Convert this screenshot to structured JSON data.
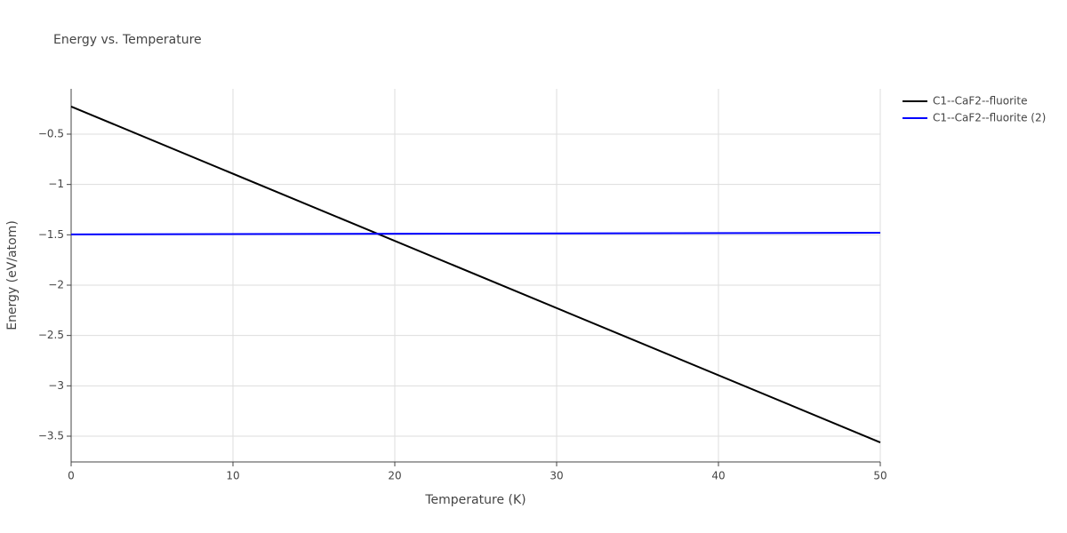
{
  "chart_data": {
    "type": "line",
    "title": "Energy vs. Temperature",
    "x_label": "Temperature (K)",
    "y_label": "Energy (eV/atom)",
    "x": [
      0,
      50
    ],
    "series": [
      {
        "name": "C1--CaF2--fluorite",
        "color": "#000000",
        "values": [
          -0.226,
          -3.562
        ]
      },
      {
        "name": "C1--CaF2--fluorite (2)",
        "color": "#0000ff",
        "values": [
          -1.496,
          -1.48
        ]
      }
    ],
    "xlim": [
      0,
      50
    ],
    "ylim": [
      -3.756,
      -0.05
    ],
    "xticks": [
      0,
      10,
      20,
      30,
      40,
      50
    ],
    "yticks": [
      {
        "value": -3.5,
        "label": "−3.5"
      },
      {
        "value": -3,
        "label": "−3"
      },
      {
        "value": -2.5,
        "label": "−2.5"
      },
      {
        "value": -2,
        "label": "−2"
      },
      {
        "value": -1.5,
        "label": "−1.5"
      },
      {
        "value": -1,
        "label": "−1"
      },
      {
        "value": -0.5,
        "label": "−0.5"
      }
    ],
    "grid": true,
    "legend": "outside-right"
  }
}
